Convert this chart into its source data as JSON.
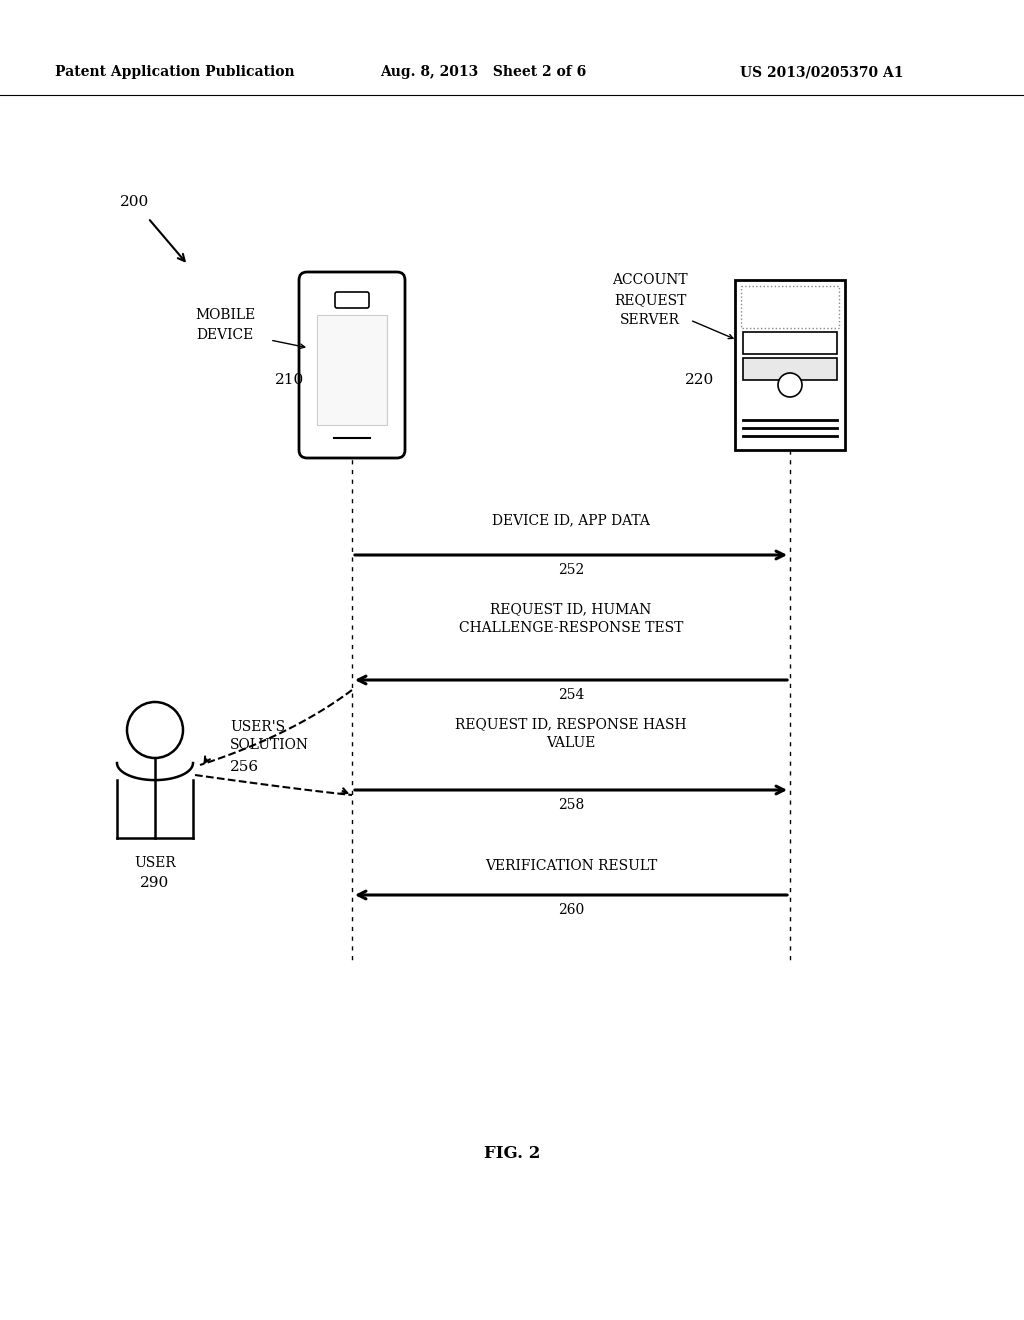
{
  "bg_color": "#ffffff",
  "header_left": "Patent Application Publication",
  "header_mid": "Aug. 8, 2013   Sheet 2 of 6",
  "header_right": "US 2013/0205370 A1",
  "fig_label": "FIG. 2",
  "label_200": "200",
  "label_mobile": "MOBILE\nDEVICE",
  "label_210": "210",
  "label_server": "ACCOUNT\nREQUEST\nSERVER",
  "label_220": "220",
  "label_user": "USER",
  "label_290": "290",
  "label_users_solution": "USER'S\nSOLUTION",
  "label_256": "256",
  "arrow_252_label": "DEVICE ID, APP DATA",
  "arrow_252_num": "252",
  "arrow_254_label": "REQUEST ID, HUMAN\nCHALLENGE-RESPONSE TEST",
  "arrow_254_num": "254",
  "arrow_258_label": "REQUEST ID, RESPONSE HASH\nVALUE",
  "arrow_258_num": "258",
  "arrow_260_label": "VERIFICATION RESULT",
  "arrow_260_num": "260"
}
